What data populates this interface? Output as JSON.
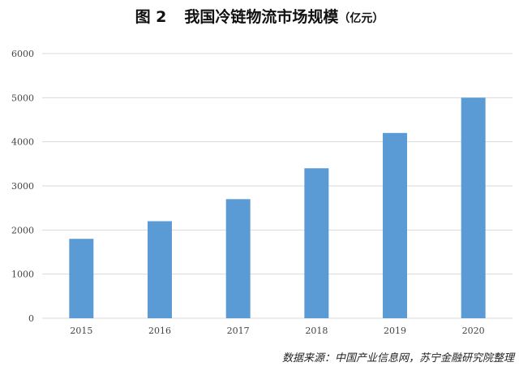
{
  "header": {
    "figure_label": "图 2",
    "title": "我国冷链物流市场规模",
    "unit": "（亿元）"
  },
  "footer": {
    "source": "数据来源：中国产业信息网，苏宁金融研究院整理"
  },
  "chart_data": {
    "type": "bar",
    "categories": [
      "2015",
      "2016",
      "2017",
      "2018",
      "2019",
      "2020"
    ],
    "values": [
      1800,
      2200,
      2700,
      3400,
      4200,
      5000
    ],
    "ylim": [
      0,
      6000
    ],
    "yticks": [
      0,
      1000,
      2000,
      3000,
      4000,
      5000,
      6000
    ],
    "grid": true,
    "bar_color": "#5b9bd5",
    "grid_color": "#d9d9d9",
    "xlabel": "",
    "ylabel": ""
  }
}
